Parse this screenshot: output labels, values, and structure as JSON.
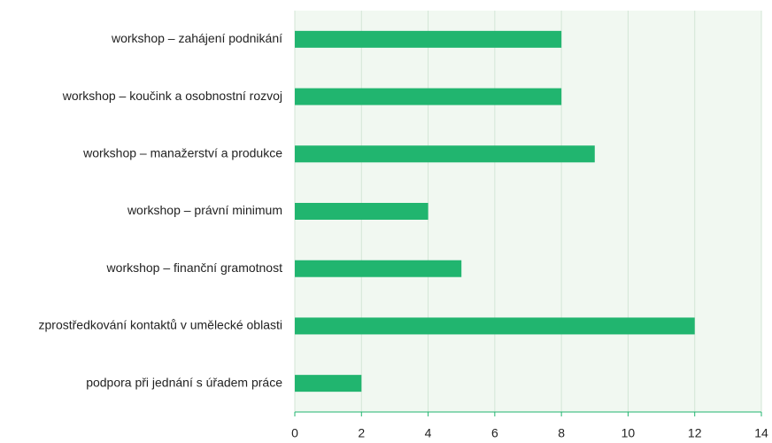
{
  "chart_data": {
    "type": "bar",
    "orientation": "horizontal",
    "categories": [
      "workshop – zahájení podnikání",
      "workshop – koučink a osobnostní rozvoj",
      "workshop – manažerství a produkce",
      "workshop – právní minimum",
      "workshop – finanční gramotnost",
      "zprostředkování kontaktů v umělecké oblasti",
      "podpora při jednání s úřadem práce"
    ],
    "values": [
      8,
      8,
      9,
      4,
      5,
      12,
      2
    ],
    "color": "#21b56f",
    "xlim": [
      0,
      14
    ],
    "xticks": [
      0,
      2,
      4,
      6,
      8,
      10,
      12,
      14
    ],
    "grid": true
  }
}
